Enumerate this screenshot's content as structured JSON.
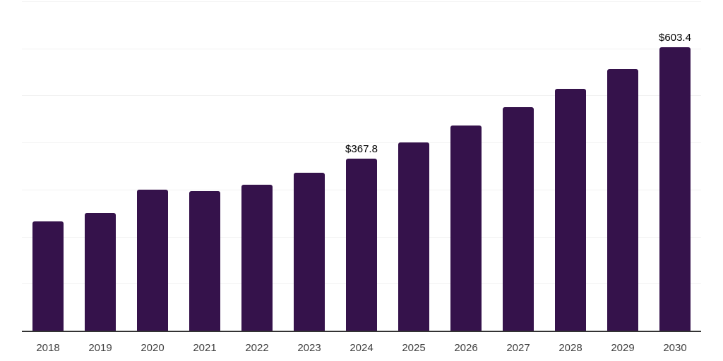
{
  "chart_data": {
    "type": "bar",
    "title": "",
    "xlabel": "",
    "ylabel": "",
    "categories": [
      "2018",
      "2019",
      "2020",
      "2021",
      "2022",
      "2023",
      "2024",
      "2025",
      "2026",
      "2027",
      "2028",
      "2029",
      "2030"
    ],
    "values": [
      233.5,
      251.8,
      302.0,
      299.0,
      311.4,
      337.5,
      367.8,
      402.3,
      438.0,
      476.8,
      515.5,
      557.2,
      603.4
    ],
    "data_labels": [
      "",
      "",
      "",
      "",
      "",
      "",
      "$367.8",
      "",
      "",
      "",
      "",
      "",
      "$603.4"
    ],
    "ylim": [
      0,
      700
    ],
    "gridline_step": 100,
    "grid": "horizontal",
    "legend": "none",
    "bar_color": "#35124B",
    "gridline_color": "#f1f1f1",
    "axis_line_color": "#333333",
    "value_label_color": "#000000",
    "tick_label_color": "#404040",
    "unit_prefix": "$"
  }
}
